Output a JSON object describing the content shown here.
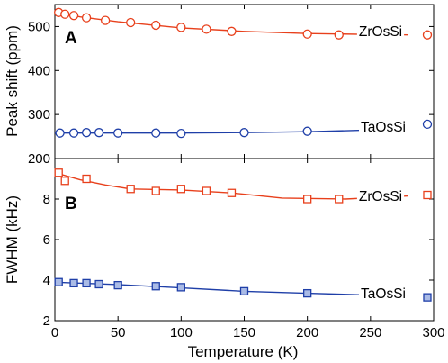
{
  "chart_data": [
    {
      "type": "line",
      "panel_label": "A",
      "ylabel": "Peak shift (ppm)",
      "xlim": [
        0,
        300
      ],
      "ylim": [
        200,
        550
      ],
      "yticks": [
        200,
        300,
        400,
        500
      ],
      "grid": false,
      "marker": "circle",
      "series": [
        {
          "name": "ZrOsSi",
          "color": "#e8401c",
          "x": [
            3,
            8,
            15,
            25,
            40,
            60,
            80,
            100,
            120,
            140,
            200,
            225,
            295
          ],
          "y": [
            532,
            528,
            525,
            520,
            514,
            509,
            503,
            498,
            494,
            489,
            483,
            481,
            481
          ],
          "fit": [
            [
              0,
              534
            ],
            [
              20,
              522
            ],
            [
              50,
              511
            ],
            [
              100,
              497
            ],
            [
              150,
              489
            ],
            [
              200,
              484
            ],
            [
              250,
              482
            ],
            [
              280,
              481
            ]
          ]
        },
        {
          "name": "TaOsSi",
          "color": "#1f3fa8",
          "x": [
            4,
            15,
            25,
            35,
            50,
            80,
            100,
            150,
            200,
            295
          ],
          "y": [
            258,
            258,
            259,
            259,
            258,
            258,
            257,
            259,
            262,
            278
          ],
          "fit": [
            [
              0,
              258
            ],
            [
              50,
              258
            ],
            [
              100,
              258
            ],
            [
              150,
              259
            ],
            [
              200,
              261
            ],
            [
              240,
              264
            ],
            [
              280,
              267
            ]
          ]
        }
      ]
    },
    {
      "type": "line",
      "panel_label": "B",
      "xlabel": "Temperature (K)",
      "ylabel": "FWHM (kHz)",
      "xlim": [
        0,
        300
      ],
      "ylim": [
        2,
        10
      ],
      "yticks": [
        2,
        4,
        6,
        8
      ],
      "xticks": [
        0,
        50,
        100,
        150,
        200,
        250,
        300
      ],
      "grid": false,
      "marker": "square",
      "series": [
        {
          "name": "ZrOsSi",
          "color": "#e8401c",
          "x": [
            3,
            8,
            25,
            60,
            80,
            100,
            120,
            140,
            200,
            225,
            295
          ],
          "y": [
            9.3,
            8.9,
            9.0,
            8.5,
            8.4,
            8.5,
            8.4,
            8.3,
            8.0,
            8.0,
            8.2
          ],
          "fit": [
            [
              0,
              9.3
            ],
            [
              20,
              8.95
            ],
            [
              40,
              8.7
            ],
            [
              60,
              8.5
            ],
            [
              100,
              8.45
            ],
            [
              140,
              8.3
            ],
            [
              180,
              8.05
            ],
            [
              230,
              8.0
            ],
            [
              280,
              8.15
            ]
          ]
        },
        {
          "name": "TaOsSi",
          "color": "#1f3fa8",
          "x": [
            3,
            15,
            25,
            35,
            50,
            80,
            100,
            150,
            200,
            295
          ],
          "y": [
            3.9,
            3.85,
            3.85,
            3.8,
            3.75,
            3.7,
            3.65,
            3.45,
            3.35,
            3.15
          ],
          "fit": [
            [
              0,
              3.9
            ],
            [
              50,
              3.78
            ],
            [
              100,
              3.62
            ],
            [
              150,
              3.45
            ],
            [
              200,
              3.35
            ],
            [
              240,
              3.28
            ],
            [
              280,
              3.2
            ]
          ]
        }
      ]
    }
  ]
}
